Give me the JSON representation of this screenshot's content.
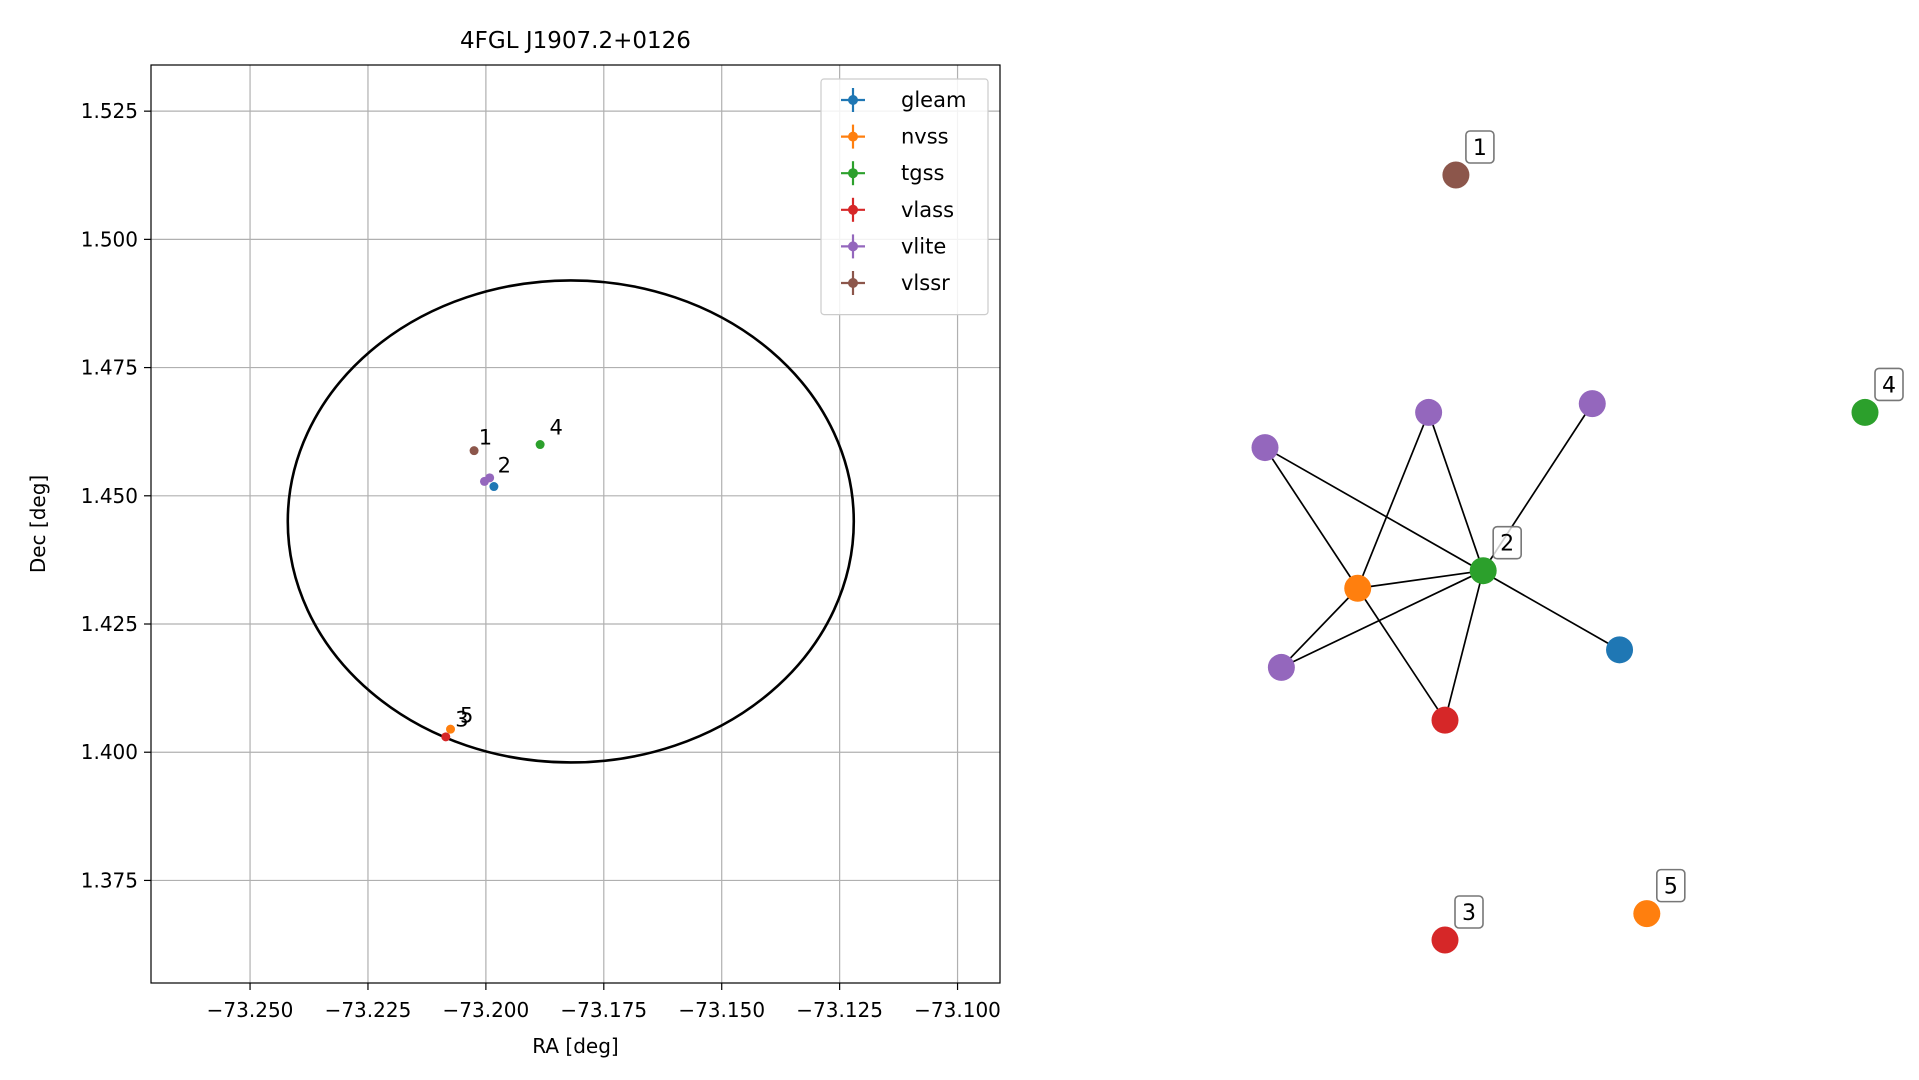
{
  "chart_data": [
    {
      "type": "scatter",
      "title": "4FGL J1907.2+0126",
      "xlabel": "RA [deg]",
      "ylabel": "Dec [deg]",
      "xlim": [
        -73.271,
        -73.091
      ],
      "ylim": [
        1.355,
        1.534
      ],
      "xticks": [
        -73.25,
        -73.225,
        -73.2,
        -73.175,
        -73.15,
        -73.125,
        -73.1
      ],
      "xtick_labels": [
        "−73.250",
        "−73.225",
        "−73.200",
        "−73.175",
        "−73.150",
        "−73.125",
        "−73.100"
      ],
      "yticks": [
        1.375,
        1.4,
        1.425,
        1.45,
        1.475,
        1.5,
        1.525
      ],
      "ytick_labels": [
        "1.375",
        "1.400",
        "1.425",
        "1.450",
        "1.475",
        "1.500",
        "1.525"
      ],
      "grid": true,
      "legend_position": "top-right",
      "ellipse": {
        "center": [
          -73.182,
          1.445
        ],
        "ra_radius": 0.06,
        "dec_radius": 0.047,
        "color": "#000000"
      },
      "series": [
        {
          "name": "gleam",
          "color": "#1f77b4",
          "points": [
            {
              "x": -73.1983,
              "y": 1.4518
            }
          ]
        },
        {
          "name": "nvss",
          "color": "#ff7f0e",
          "points": [
            {
              "x": -73.2075,
              "y": 1.4045
            }
          ]
        },
        {
          "name": "tgss",
          "color": "#2ca02c",
          "points": [
            {
              "x": -73.1885,
              "y": 1.46
            }
          ]
        },
        {
          "name": "vlass",
          "color": "#d62728",
          "points": [
            {
              "x": -73.2085,
              "y": 1.403
            }
          ]
        },
        {
          "name": "vlite",
          "color": "#9467bd",
          "points": [
            {
              "x": -73.1992,
              "y": 1.4535
            },
            {
              "x": -73.2003,
              "y": 1.4528
            }
          ]
        },
        {
          "name": "vlssr",
          "color": "#8c564b",
          "points": [
            {
              "x": -73.2025,
              "y": 1.4588
            }
          ]
        }
      ],
      "annotations": [
        {
          "text": "1",
          "x": -73.2015,
          "y": 1.46
        },
        {
          "text": "2",
          "x": -73.1975,
          "y": 1.4545
        },
        {
          "text": "3",
          "x": -73.2065,
          "y": 1.405
        },
        {
          "text": "4",
          "x": -73.1865,
          "y": 1.462
        },
        {
          "text": "5",
          "x": -73.2055,
          "y": 1.4058
        }
      ]
    },
    {
      "type": "network",
      "nodes": [
        {
          "id": "n1",
          "color": "#8c564b",
          "label": "1",
          "pos": [
            0.2,
            0.92
          ]
        },
        {
          "id": "n2",
          "color": "#2ca02c",
          "label": "2",
          "pos": [
            0.25,
            0.47
          ]
        },
        {
          "id": "n3",
          "color": "#d62728",
          "label": "3",
          "pos": [
            0.18,
            0.05
          ]
        },
        {
          "id": "n4",
          "color": "#2ca02c",
          "label": "4",
          "pos": [
            0.95,
            0.65
          ]
        },
        {
          "id": "n5",
          "color": "#ff7f0e",
          "label": "5",
          "pos": [
            0.55,
            0.08
          ]
        },
        {
          "id": "nv",
          "color": "#ff7f0e",
          "label": "",
          "pos": [
            0.02,
            0.45
          ]
        },
        {
          "id": "pv1",
          "color": "#9467bd",
          "label": "",
          "pos": [
            0.15,
            0.65
          ]
        },
        {
          "id": "pv2",
          "color": "#9467bd",
          "label": "",
          "pos": [
            0.45,
            0.66
          ]
        },
        {
          "id": "pv3",
          "color": "#9467bd",
          "label": "",
          "pos": [
            -0.15,
            0.61
          ]
        },
        {
          "id": "pv4",
          "color": "#9467bd",
          "label": "",
          "pos": [
            -0.12,
            0.36
          ]
        },
        {
          "id": "gl",
          "color": "#1f77b4",
          "label": "",
          "pos": [
            0.5,
            0.38
          ]
        },
        {
          "id": "vl",
          "color": "#d62728",
          "label": "",
          "pos": [
            0.18,
            0.3
          ]
        }
      ],
      "edges": [
        [
          "pv3",
          "nv"
        ],
        [
          "pv3",
          "gl"
        ],
        [
          "pv1",
          "nv"
        ],
        [
          "pv1",
          "n2"
        ],
        [
          "nv",
          "n2"
        ],
        [
          "nv",
          "pv4"
        ],
        [
          "nv",
          "vl"
        ],
        [
          "n2",
          "pv2"
        ],
        [
          "n2",
          "pv4"
        ],
        [
          "n2",
          "vl"
        ]
      ]
    }
  ]
}
